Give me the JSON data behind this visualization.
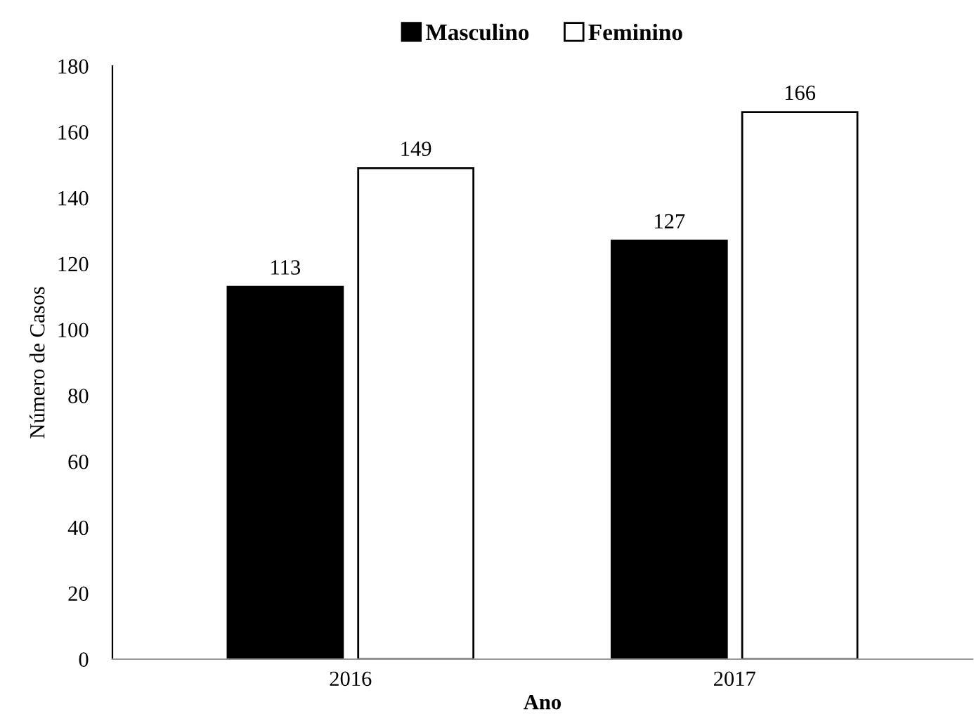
{
  "chart_data": {
    "type": "bar",
    "xlabel": "Ano",
    "ylabel": "Número de Casos",
    "categories": [
      "2016",
      "2017"
    ],
    "series": [
      {
        "name": "Masculino",
        "color": "#000000",
        "values": [
          113,
          127
        ]
      },
      {
        "name": "Feminino",
        "color": "#ffffff",
        "values": [
          149,
          166
        ]
      }
    ],
    "ylim": [
      0,
      180
    ],
    "yticks": [
      0,
      20,
      40,
      60,
      80,
      100,
      120,
      140,
      160,
      180
    ],
    "data_labels": true,
    "grid": false,
    "legend": "top"
  }
}
